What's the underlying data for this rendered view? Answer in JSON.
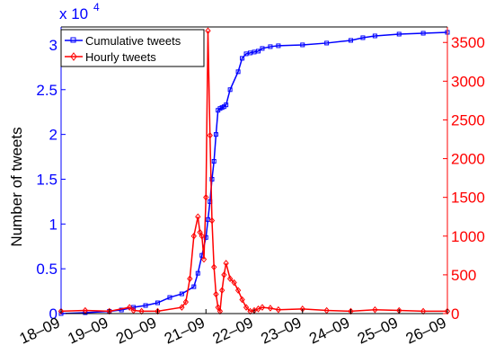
{
  "chart_data": {
    "type": "line",
    "ylabel": "Number of tweets",
    "y_left_multiplier": {
      "base": "x 10",
      "exponent": "4"
    },
    "x_ticks": [
      "18–09",
      "19–09",
      "20–09",
      "21–09",
      "22–09",
      "23–09",
      "24–09",
      "25–09",
      "26–09"
    ],
    "xlim": [
      0,
      192
    ],
    "y_left": {
      "lim": [
        0,
        32000
      ],
      "ticks": [
        0,
        5000,
        10000,
        15000,
        20000,
        25000,
        30000
      ],
      "tick_labels": [
        "0",
        "0.5",
        "1",
        "1.5",
        "2",
        "2.5",
        "3"
      ],
      "color": "#0000ff"
    },
    "y_right": {
      "lim": [
        0,
        3700
      ],
      "ticks": [
        0,
        500,
        1000,
        1500,
        2000,
        2500,
        3000,
        3500
      ],
      "tick_labels": [
        "0",
        "500",
        "1000",
        "1500",
        "2000",
        "2500",
        "3000",
        "3500"
      ],
      "color": "#ff0000"
    },
    "legend_position": "top-left",
    "grid": false,
    "series": [
      {
        "name": "Cumulative tweets",
        "axis": "left",
        "color": "#0000ff",
        "marker": "square",
        "x": [
          0,
          12,
          24,
          30,
          36,
          42,
          48,
          54,
          60,
          66,
          68,
          70,
          72,
          73,
          74,
          75,
          76,
          77,
          78,
          79,
          80,
          81,
          82,
          84,
          88,
          90,
          92,
          94,
          96,
          98,
          100,
          104,
          108,
          120,
          132,
          144,
          150,
          156,
          168,
          180,
          192
        ],
        "values": [
          0,
          100,
          250,
          400,
          700,
          900,
          1200,
          1800,
          2200,
          3000,
          4500,
          6500,
          8500,
          10500,
          12500,
          15000,
          17000,
          20000,
          22700,
          22900,
          23000,
          23100,
          23300,
          25000,
          27000,
          28500,
          29000,
          29100,
          29200,
          29300,
          29600,
          29800,
          29900,
          30000,
          30200,
          30500,
          30800,
          31000,
          31200,
          31300,
          31400
        ]
      },
      {
        "name": "Hourly tweets",
        "axis": "right",
        "color": "#ff0000",
        "marker": "diamond",
        "x": [
          0,
          12,
          24,
          34,
          36,
          40,
          48,
          60,
          62,
          64,
          66,
          68,
          69,
          70,
          71,
          72,
          73,
          74,
          75,
          76,
          77,
          78,
          79,
          80,
          81,
          82,
          84,
          86,
          88,
          90,
          92,
          94,
          96,
          98,
          100,
          104,
          108,
          120,
          132,
          144,
          156,
          168,
          180,
          192
        ],
        "values": [
          30,
          40,
          30,
          80,
          40,
          30,
          30,
          80,
          150,
          450,
          1000,
          1250,
          1050,
          1000,
          700,
          1500,
          3650,
          2300,
          1200,
          600,
          250,
          80,
          30,
          300,
          500,
          650,
          450,
          400,
          300,
          180,
          80,
          30,
          40,
          60,
          80,
          70,
          50,
          60,
          40,
          30,
          50,
          40,
          30,
          30
        ]
      }
    ]
  }
}
